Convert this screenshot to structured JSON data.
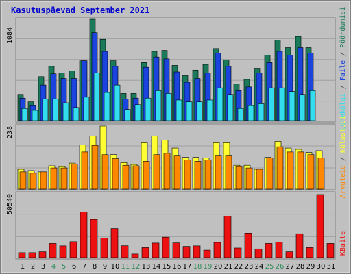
{
  "title": "Kasutuspäevad September 2021",
  "colors": {
    "background": "#c0c0c0",
    "frame_outer": "#808080",
    "title": "#0000cc",
    "weekday_label": "#000000",
    "weekend_label": "#2e8b57",
    "pooordumisi": "#1a7a5a",
    "faile": "#1a44dd",
    "lehekulgi": "#33ddee",
    "kulastusi": "#ffff33",
    "arvuteid": "#ff8800",
    "kbaite": "#ee1111"
  },
  "chart_data": [
    {
      "type": "bar",
      "panel": "top",
      "ytick_label": "1084",
      "ymax": 1084,
      "categories": [
        "1",
        "2",
        "3",
        "4",
        "5",
        "6",
        "7",
        "8",
        "9",
        "10",
        "11",
        "12",
        "13",
        "14",
        "15",
        "16",
        "17",
        "18",
        "19",
        "20",
        "21",
        "22",
        "23",
        "24",
        "25",
        "26",
        "27",
        "28",
        "29",
        "30",
        "31"
      ],
      "weekend": [
        false,
        false,
        false,
        true,
        true,
        false,
        false,
        false,
        false,
        false,
        true,
        true,
        false,
        false,
        false,
        false,
        false,
        true,
        true,
        false,
        false,
        false,
        false,
        false,
        true,
        true,
        false,
        false,
        false,
        false,
        false
      ],
      "series": [
        {
          "name": "Pöördumisi",
          "color": "#1a7a5a",
          "values": [
            280,
            200,
            470,
            580,
            510,
            530,
            640,
            1084,
            870,
            640,
            290,
            290,
            620,
            740,
            750,
            590,
            480,
            540,
            600,
            770,
            650,
            390,
            440,
            560,
            700,
            860,
            780,
            900,
            780,
            0,
            0
          ]
        },
        {
          "name": "Faile",
          "color": "#1a44dd",
          "values": [
            240,
            160,
            380,
            500,
            450,
            450,
            640,
            940,
            740,
            580,
            230,
            240,
            570,
            680,
            660,
            520,
            410,
            450,
            510,
            720,
            580,
            320,
            360,
            510,
            620,
            740,
            700,
            780,
            720,
            0,
            0
          ]
        },
        {
          "name": "Lehekülgi",
          "color": "#33ddee",
          "values": [
            130,
            110,
            230,
            230,
            190,
            140,
            250,
            510,
            300,
            380,
            120,
            170,
            240,
            320,
            290,
            220,
            200,
            200,
            220,
            350,
            280,
            130,
            160,
            180,
            350,
            350,
            310,
            280,
            320,
            0,
            0
          ]
        }
      ]
    },
    {
      "type": "bar",
      "panel": "middle",
      "ytick_label": "238",
      "ymax": 238,
      "categories": [
        "1",
        "2",
        "3",
        "4",
        "5",
        "6",
        "7",
        "8",
        "9",
        "10",
        "11",
        "12",
        "13",
        "14",
        "15",
        "16",
        "17",
        "18",
        "19",
        "20",
        "21",
        "22",
        "23",
        "24",
        "25",
        "26",
        "27",
        "28",
        "29",
        "30",
        "31"
      ],
      "series": [
        {
          "name": "Külastusi",
          "color": "#ffff33",
          "values": [
            75,
            70,
            65,
            88,
            85,
            98,
            167,
            200,
            238,
            130,
            100,
            93,
            175,
            200,
            185,
            155,
            120,
            120,
            118,
            175,
            175,
            90,
            90,
            75,
            120,
            180,
            155,
            150,
            138,
            145,
            0
          ]
        },
        {
          "name": "Arvuteid",
          "color": "#ff8800",
          "values": [
            65,
            60,
            65,
            80,
            80,
            95,
            140,
            165,
            130,
            115,
            90,
            88,
            105,
            130,
            135,
            125,
            110,
            105,
            110,
            125,
            125,
            85,
            80,
            75,
            118,
            160,
            140,
            140,
            130,
            118,
            0
          ]
        }
      ]
    },
    {
      "type": "bar",
      "panel": "bottom",
      "ytick_label": "50540",
      "ymax": 50540,
      "categories": [
        "1",
        "2",
        "3",
        "4",
        "5",
        "6",
        "7",
        "8",
        "9",
        "10",
        "11",
        "12",
        "13",
        "14",
        "15",
        "16",
        "17",
        "18",
        "19",
        "20",
        "21",
        "22",
        "23",
        "24",
        "25",
        "26",
        "27",
        "28",
        "29",
        "30",
        "31"
      ],
      "series": [
        {
          "name": "KBaite",
          "color": "#ee1111",
          "values": [
            3900,
            3900,
            4600,
            11300,
            9400,
            12700,
            36600,
            30700,
            15600,
            23300,
            9500,
            2800,
            8000,
            11600,
            16400,
            11700,
            9000,
            9400,
            6000,
            12100,
            33300,
            7700,
            19600,
            7000,
            11300,
            12400,
            4600,
            19100,
            8000,
            50540,
            11300
          ]
        }
      ]
    }
  ],
  "legend_right_top": {
    "pooordumisi": "Pöördumisi",
    "sep1": "/",
    "faile": "Faile",
    "sep2": "/",
    "lehekulgi": "Lehekülgi"
  },
  "legend_right_middle": {
    "arvuteid": "Arvuteid",
    "sep": "/",
    "kulastusi": "Külastusi"
  },
  "legend_right_bottom": {
    "kbaite": "KBaite"
  }
}
